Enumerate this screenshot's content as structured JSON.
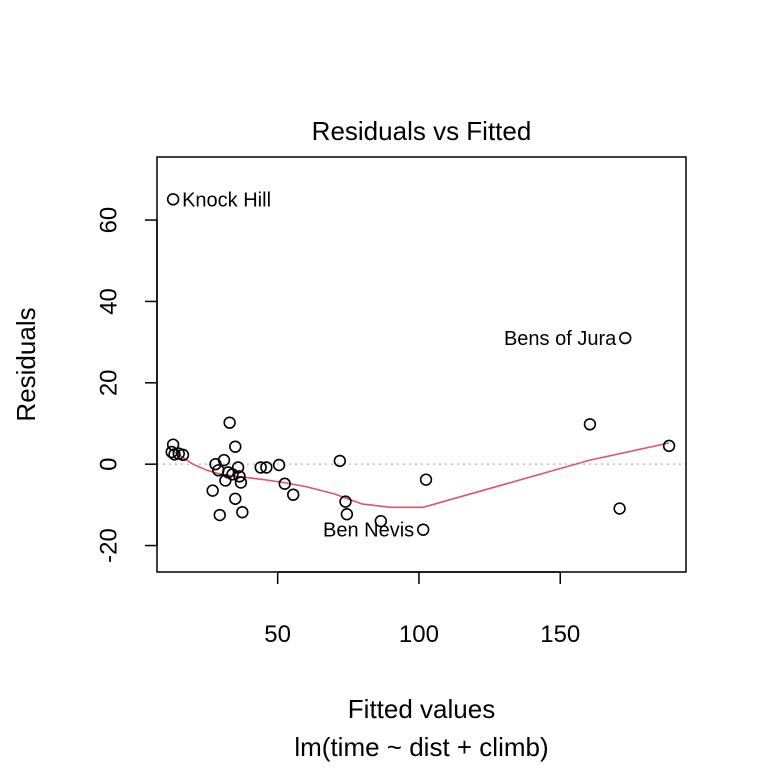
{
  "chart_data": {
    "type": "scatter",
    "title": "Residuals vs Fitted",
    "xlabel": "Fitted values",
    "subtitle": "lm(time ~ dist + climb)",
    "ylabel": "Residuals",
    "xlim": [
      7.3,
      194.5
    ],
    "ylim": [
      -26.5,
      75.5
    ],
    "x_ticks": [
      50,
      100,
      150
    ],
    "y_ticks": [
      -20,
      0,
      20,
      40,
      60
    ],
    "x_tick_labels": [
      "50",
      "100",
      "150"
    ],
    "y_tick_labels": [
      "-20",
      "0",
      "20",
      "40",
      "60"
    ],
    "zero_line": 0,
    "colors": {
      "smooth": "#DF536B",
      "zero_line": "#BEBEBE",
      "points": "#000000"
    },
    "points": [
      {
        "x": 13.0,
        "y": 65.1
      },
      {
        "x": 173.0,
        "y": 31.0
      },
      {
        "x": 13.0,
        "y": 4.8
      },
      {
        "x": 12.5,
        "y": 3.0
      },
      {
        "x": 13.5,
        "y": 2.4
      },
      {
        "x": 15.0,
        "y": 2.6
      },
      {
        "x": 16.5,
        "y": 2.3
      },
      {
        "x": 27.0,
        "y": -6.5
      },
      {
        "x": 28.0,
        "y": 0.0
      },
      {
        "x": 29.0,
        "y": -1.5
      },
      {
        "x": 29.5,
        "y": -12.5
      },
      {
        "x": 31.0,
        "y": 1.0
      },
      {
        "x": 31.5,
        "y": -4.0
      },
      {
        "x": 32.5,
        "y": -2.0
      },
      {
        "x": 33.0,
        "y": 10.2
      },
      {
        "x": 34.0,
        "y": -2.5
      },
      {
        "x": 35.0,
        "y": 4.3
      },
      {
        "x": 35.0,
        "y": -8.5
      },
      {
        "x": 36.0,
        "y": -0.8
      },
      {
        "x": 36.5,
        "y": -3.0
      },
      {
        "x": 37.0,
        "y": -4.5
      },
      {
        "x": 37.5,
        "y": -11.8
      },
      {
        "x": 44.0,
        "y": -0.8
      },
      {
        "x": 46.0,
        "y": -0.8
      },
      {
        "x": 50.5,
        "y": -0.2
      },
      {
        "x": 52.5,
        "y": -4.8
      },
      {
        "x": 55.5,
        "y": -7.5
      },
      {
        "x": 72.0,
        "y": 0.8
      },
      {
        "x": 74.0,
        "y": -9.2
      },
      {
        "x": 74.5,
        "y": -12.3
      },
      {
        "x": 86.5,
        "y": -14.0
      },
      {
        "x": 101.5,
        "y": -16.1
      },
      {
        "x": 102.5,
        "y": -3.8
      },
      {
        "x": 160.5,
        "y": 9.8
      },
      {
        "x": 171.0,
        "y": -10.9
      },
      {
        "x": 188.5,
        "y": 4.5
      }
    ],
    "smooth_line": [
      {
        "x": 12.5,
        "y": 3.4
      },
      {
        "x": 15.0,
        "y": 2.3
      },
      {
        "x": 20.0,
        "y": 0.0
      },
      {
        "x": 25.0,
        "y": -1.5
      },
      {
        "x": 30.0,
        "y": -2.5
      },
      {
        "x": 36.0,
        "y": -3.0
      },
      {
        "x": 45.0,
        "y": -3.8
      },
      {
        "x": 52.0,
        "y": -4.5
      },
      {
        "x": 60.0,
        "y": -5.5
      },
      {
        "x": 70.0,
        "y": -7.3
      },
      {
        "x": 80.0,
        "y": -9.8
      },
      {
        "x": 90.0,
        "y": -10.6
      },
      {
        "x": 101.5,
        "y": -10.6
      },
      {
        "x": 160.5,
        "y": 1.0
      },
      {
        "x": 188.5,
        "y": 5.2
      }
    ],
    "annotations": [
      {
        "text": "Knock Hill",
        "x": 13.0,
        "y": 65.1,
        "side": "right"
      },
      {
        "text": "Bens of Jura",
        "x": 173.0,
        "y": 31.0,
        "side": "left"
      },
      {
        "text": "Ben Nevis",
        "x": 101.5,
        "y": -16.1,
        "side": "left"
      }
    ]
  }
}
